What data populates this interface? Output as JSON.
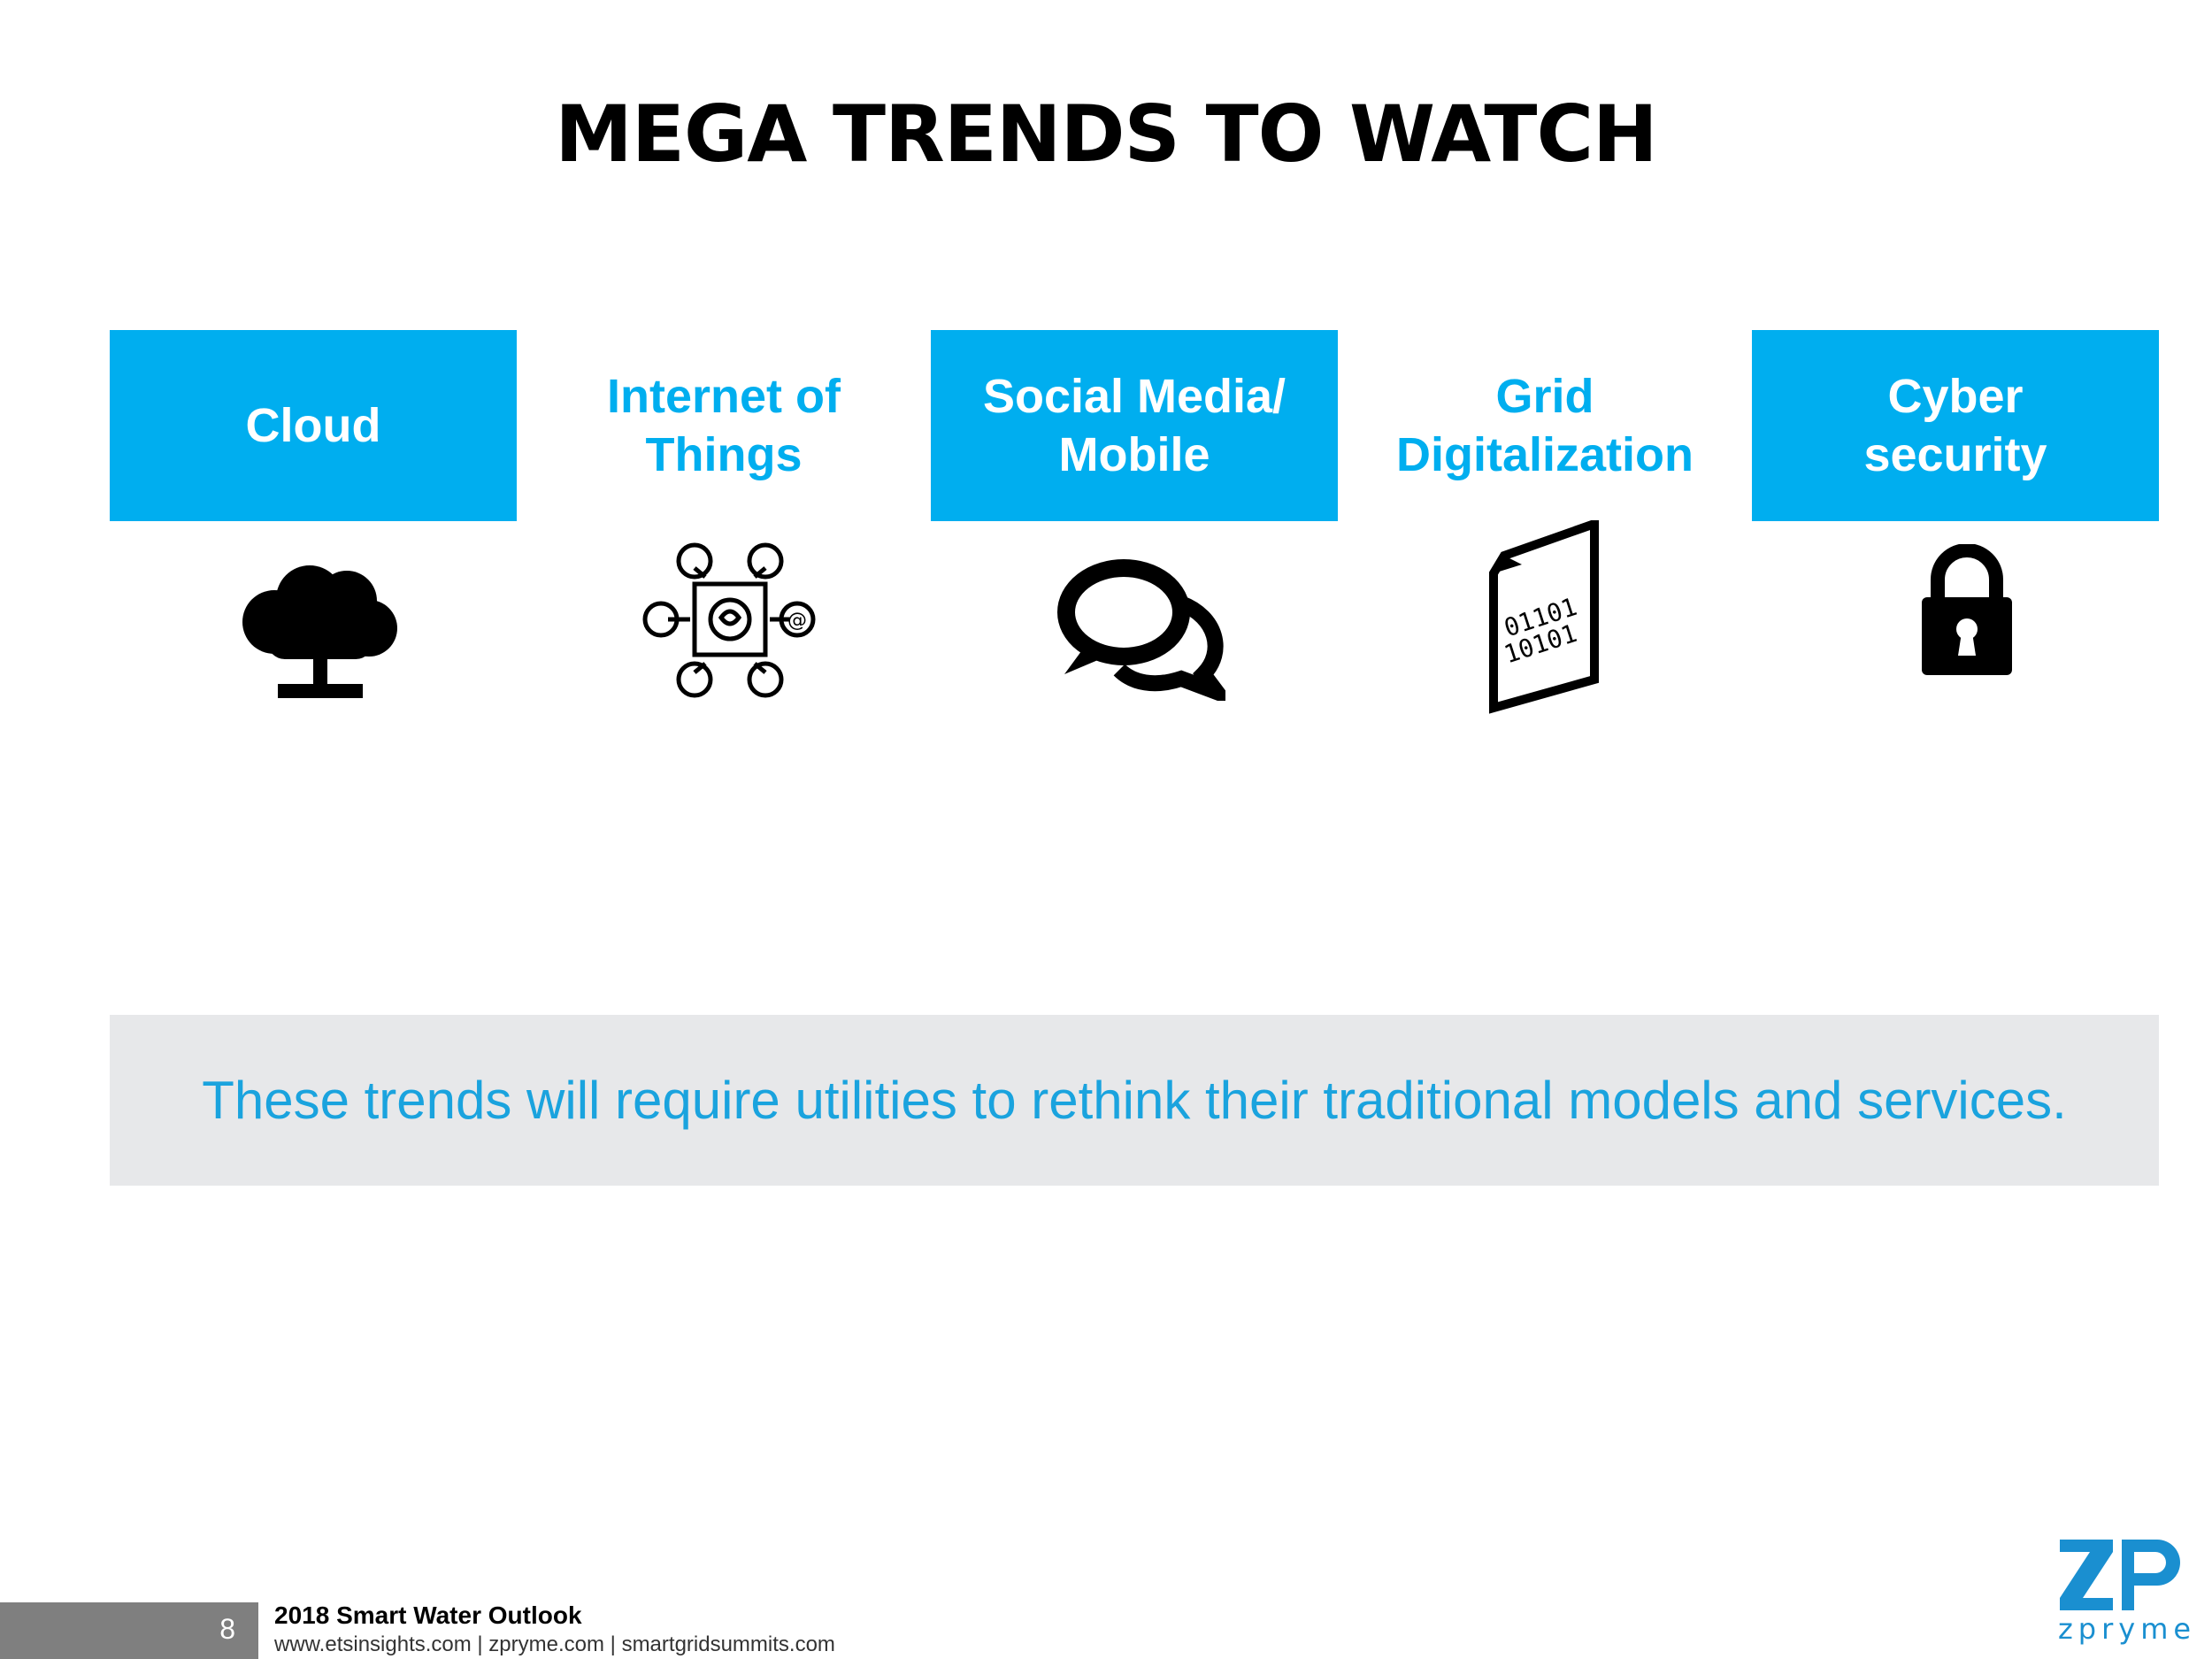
{
  "title": "MEGA TRENDS TO WATCH",
  "trends": [
    {
      "label": "Cloud",
      "icon": "cloud-tree-icon"
    },
    {
      "label": "Internet of\nThings",
      "icon": "iot-network-icon"
    },
    {
      "label": "Social Media/\nMobile",
      "icon": "speech-bubbles-icon"
    },
    {
      "label": "Grid\nDigitalization",
      "icon": "binary-document-icon"
    },
    {
      "label": "Cyber\nsecurity",
      "icon": "padlock-icon"
    }
  ],
  "banner_text": "These trends will require utilities to rethink their traditional models and services.",
  "footer": {
    "page_number": "8",
    "report_title": "2018 Smart Water Outlook",
    "links": "www.etsinsights.com | zpryme.com | smartgridsummits.com"
  },
  "logo": {
    "text": "zpryme"
  },
  "colors": {
    "accent": "#00aeef",
    "banner_bg": "#e7e8ea",
    "banner_text": "#1aa3de",
    "footer_bar": "#7f7f7f"
  }
}
